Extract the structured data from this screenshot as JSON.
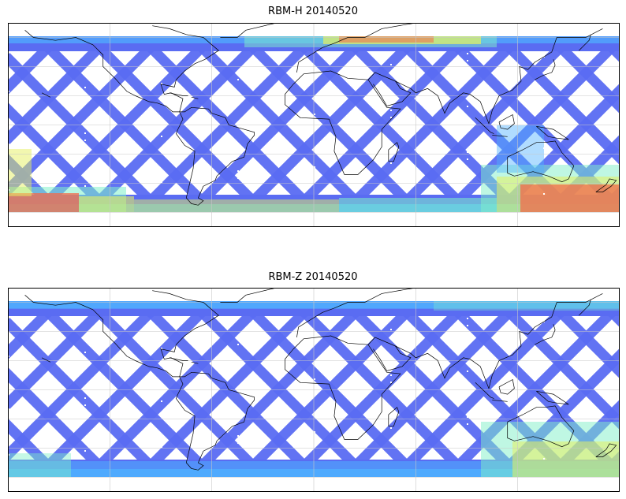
{
  "panels": [
    {
      "title": "RBM-H 20140520",
      "colormap": "jet",
      "high_value_regions": [
        "southern-ocean-south-atlantic",
        "southern-ocean-south-pacific",
        "north-pacific-band"
      ]
    },
    {
      "title": "RBM-Z 20140520",
      "colormap": "jet",
      "high_value_regions": [
        "south-atlantic"
      ]
    }
  ],
  "map": {
    "projection": "plate-carree",
    "lon_range": [
      -180,
      180
    ],
    "lat_range": [
      -70,
      70
    ],
    "gridlines": true,
    "coastlines": true
  },
  "colors": {
    "low": "#5a6cf2",
    "mid_low": "#4fb1ff",
    "mid": "#7ff0c8",
    "mid_high": "#e6f060",
    "high": "#f46a4a",
    "coast": "#000000",
    "grid": "#c8c8c8"
  }
}
